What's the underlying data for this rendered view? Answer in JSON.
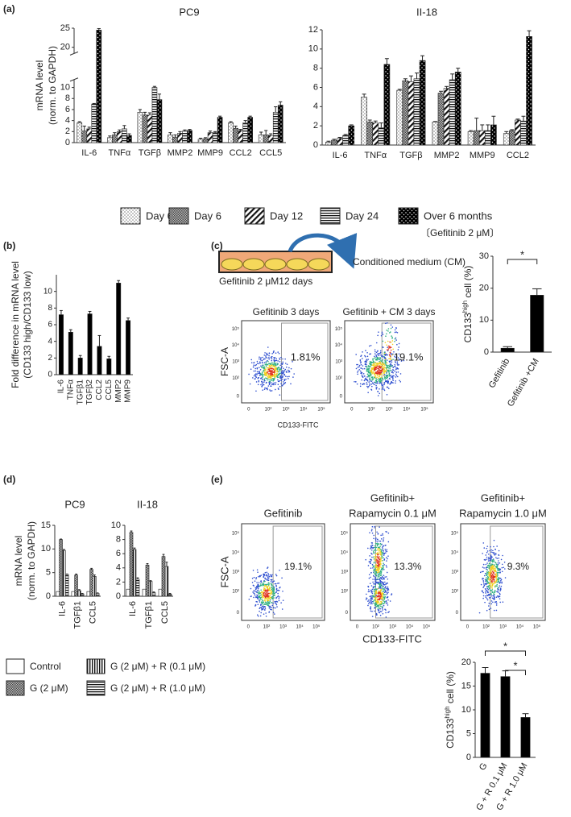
{
  "panel_labels": [
    "(a)",
    "(b)",
    "(c)",
    "(d)",
    "(e)"
  ],
  "chart_data": [
    {
      "type": "bar",
      "title": "PC9",
      "y_label": [
        "mRNA level",
        "(norm. to GAPDH)"
      ],
      "categories": [
        "IL-6",
        "TNFα",
        "TGFβ",
        "MMP2",
        "MMP9",
        "CCL2",
        "CCL5"
      ],
      "series": [
        {
          "name": "Day 0",
          "pattern": "dots",
          "values": [
            3.6,
            0.9,
            5.5,
            1.4,
            0.6,
            3.6,
            1.4
          ],
          "errors": [
            0.2,
            0.3,
            0.5,
            0.4,
            0.2,
            0.2,
            0.5
          ]
        },
        {
          "name": "Day 6",
          "pattern": "crosshatch",
          "values": [
            2.1,
            1.4,
            5.0,
            1.0,
            0.7,
            2.6,
            1.4
          ],
          "errors": [
            0.9,
            0.4,
            0.5,
            0.4,
            0.2,
            0.4,
            0.8
          ]
        },
        {
          "name": "Day 12",
          "pattern": "diagonal",
          "values": [
            2.5,
            2.0,
            5.0,
            1.7,
            1.8,
            2.2,
            1.3
          ],
          "errors": [
            0.3,
            0.3,
            0.4,
            0.3,
            0.3,
            0.2,
            0.3
          ]
        },
        {
          "name": "Day 24",
          "pattern": "horizontal",
          "values": [
            7.0,
            2.5,
            10.0,
            2.1,
            1.8,
            3.6,
            5.5
          ],
          "errors": [
            0.1,
            0.6,
            0.2,
            0.2,
            0.2,
            0.4,
            1.0
          ]
        },
        {
          "name": "Over 6 months",
          "pattern": "black-dots",
          "values": [
            24.5,
            1.3,
            7.8,
            2.2,
            4.6,
            4.6,
            6.8
          ],
          "errors": [
            0.4,
            0.3,
            1.0,
            0.2,
            0.2,
            0.2,
            0.6
          ]
        }
      ],
      "ylim": [
        0,
        25
      ],
      "axis_break": [
        11,
        19
      ],
      "yticks": [
        0,
        2,
        4,
        6,
        8,
        10,
        20,
        25
      ]
    },
    {
      "type": "bar",
      "title": "II-18",
      "categories": [
        "IL-6",
        "TNFα",
        "TGFβ",
        "MMP2",
        "MMP9",
        "CCL2"
      ],
      "series": [
        {
          "pattern": "dots",
          "values": [
            0.3,
            5.0,
            5.7,
            2.4,
            1.4,
            1.2
          ],
          "errors": [
            0.1,
            0.3,
            0.1,
            0.05,
            0.1,
            0.2
          ]
        },
        {
          "pattern": "crosshatch",
          "values": [
            0.5,
            2.4,
            6.7,
            5.4,
            1.5,
            1.5
          ],
          "errors": [
            0.1,
            0.2,
            0.2,
            0.2,
            1.3,
            0.1
          ]
        },
        {
          "pattern": "diagonal",
          "values": [
            0.7,
            2.3,
            6.6,
            5.9,
            1.5,
            2.6
          ],
          "errors": [
            0.1,
            0.2,
            0.6,
            0.2,
            0.6,
            0.1
          ]
        },
        {
          "pattern": "horizontal",
          "values": [
            1.0,
            1.8,
            6.9,
            6.8,
            1.5,
            2.5
          ],
          "errors": [
            0.1,
            0.5,
            0.6,
            0.6,
            0.6,
            0.5
          ]
        },
        {
          "pattern": "black-dots",
          "values": [
            2.0,
            8.4,
            8.8,
            7.6,
            2.1,
            11.3
          ],
          "errors": [
            0.1,
            0.6,
            0.5,
            0.4,
            0.9,
            0.6
          ]
        }
      ],
      "ylim": [
        0,
        12
      ],
      "yticks": [
        0,
        2,
        4,
        6,
        8,
        10,
        12
      ]
    },
    {
      "type": "bar",
      "y_label": [
        "Fold difference in mRNA level",
        "(CD133 high/CD133 low)"
      ],
      "categories": [
        "IL-6",
        "TNFα",
        "TGFβ1",
        "TGFβ2",
        "CCL2",
        "CCL5",
        "MMP2",
        "MMP9"
      ],
      "values": [
        7.2,
        5.1,
        2.0,
        7.3,
        3.4,
        1.9,
        11.0,
        6.5
      ],
      "errors": [
        0.5,
        0.3,
        0.3,
        0.3,
        1.3,
        0.3,
        0.3,
        0.3
      ],
      "color": "#000000",
      "ylim": [
        0,
        12
      ],
      "yticks": [
        0,
        2,
        4,
        6,
        8,
        10
      ]
    },
    {
      "type": "bar",
      "y_label": [
        "CD133",
        "high",
        " cell (%)"
      ],
      "categories": [
        "Gefitinib",
        "Gefitinib +CM"
      ],
      "values": [
        1.2,
        17.8
      ],
      "errors": [
        0.5,
        2.0
      ],
      "color": "#000000",
      "ylim": [
        0,
        30
      ],
      "yticks": [
        0,
        10,
        20,
        30
      ],
      "annotations": [
        "*"
      ]
    },
    {
      "type": "bar",
      "title": "PC9",
      "y_label": [
        "mRNA level",
        "(norm. to GAPDH)"
      ],
      "categories": [
        "IL-6",
        "TGFβ1",
        "CCL5"
      ],
      "series": [
        {
          "name": "Control",
          "pattern": "white",
          "values": [
            1,
            1,
            1
          ]
        },
        {
          "name": "G (2 μM)",
          "pattern": "crosshatch",
          "values": [
            12.0,
            4.5,
            5.7
          ],
          "errors": [
            0.1,
            0.2,
            0.2
          ]
        },
        {
          "name": "G (2 μM) + R (0.1 μM)",
          "pattern": "vertical",
          "values": [
            9.7,
            1.2,
            4.2
          ],
          "errors": [
            0.2,
            0.2,
            0.3
          ]
        },
        {
          "name": "G (2 μM) + R (1.0 μM)",
          "pattern": "horizontal",
          "values": [
            4.6,
            0.5,
            0.6
          ],
          "errors": [
            0.1,
            0.1,
            0.1
          ]
        }
      ],
      "ylim": [
        0,
        15
      ],
      "yticks": [
        0,
        5,
        10,
        15
      ]
    },
    {
      "type": "bar",
      "title": "II-18",
      "categories": [
        "IL-6",
        "TGFβ1",
        "CCL5"
      ],
      "series": [
        {
          "pattern": "white",
          "values": [
            1,
            1,
            1
          ]
        },
        {
          "pattern": "crosshatch",
          "values": [
            9.0,
            4.4,
            5.6
          ],
          "errors": [
            0.2,
            0.2,
            0.3
          ]
        },
        {
          "pattern": "vertical",
          "values": [
            6.6,
            2.1,
            4.2
          ],
          "errors": [
            0.2,
            0.1,
            0.6
          ]
        },
        {
          "pattern": "horizontal",
          "values": [
            2.4,
            0.5,
            0.3
          ],
          "errors": [
            0.2,
            0.1,
            0.1
          ]
        }
      ],
      "ylim": [
        0,
        10
      ],
      "yticks": [
        0,
        2,
        4,
        6,
        8,
        10
      ]
    },
    {
      "type": "bar",
      "y_label": [
        "CD133",
        "high",
        " cell (%)"
      ],
      "categories": [
        "G",
        "G + R 0.1 μM",
        "G + R 1.0 μM"
      ],
      "values": [
        17.7,
        17.0,
        8.4
      ],
      "errors": [
        1.2,
        1.2,
        0.8
      ],
      "color": "#000000",
      "ylim": [
        0,
        20
      ],
      "yticks": [
        0,
        5,
        10,
        15,
        20
      ],
      "annotations": [
        "*",
        "*"
      ]
    }
  ],
  "legend_note": "〔Gefitinib 2 μM〕",
  "schematic": {
    "drug": "Gefitinib 2 μM12 days",
    "output": "Conditioned medium (CM)"
  },
  "flow_c": {
    "titles": [
      "Gefitinib 3 days",
      "Gefitinib + CM 3 days"
    ],
    "percents": [
      "1.81%",
      "19.1%"
    ],
    "y_label": "FSC-A",
    "x_label": "CD133-FITC"
  },
  "flow_e": {
    "titles": [
      [
        "Gefitinib"
      ],
      [
        "Gefitinib+",
        "Rapamycin 0.1 μM"
      ],
      [
        "Gefitinib+",
        "Rapamycin 1.0 μM"
      ]
    ],
    "percents": [
      "19.1%",
      "13.3%",
      "9.3%"
    ],
    "y_label": "FSC-A",
    "x_label": "CD133-FITC"
  },
  "flow_ticks": [
    "0",
    "10²",
    "10³",
    "10⁴",
    "10⁵"
  ]
}
